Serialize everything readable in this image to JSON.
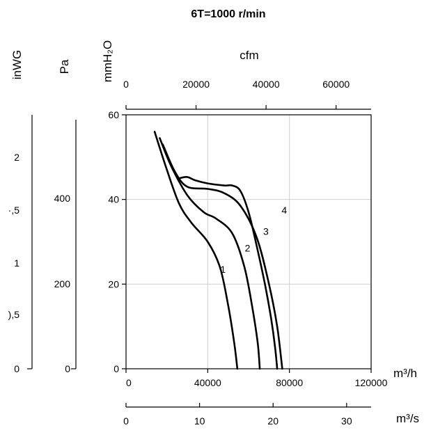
{
  "chart_data": {
    "type": "line",
    "title": "6T=1000 r/min",
    "primary_x": {
      "unit": "m³/h",
      "range": [
        0,
        120000
      ],
      "ticks": [
        0,
        40000,
        80000,
        120000
      ]
    },
    "primary_y": {
      "unit": "mmH₂O",
      "range": [
        0,
        60
      ],
      "ticks": [
        0,
        20,
        40,
        60
      ]
    },
    "secondary_x_top": {
      "unit": "cfm",
      "range": [
        0,
        70000
      ],
      "ticks": [
        0,
        20000,
        40000,
        60000
      ]
    },
    "secondary_x_bottom": {
      "unit": "m³/s",
      "range": [
        0,
        33.33
      ],
      "ticks": [
        0,
        10,
        20,
        30
      ]
    },
    "secondary_y_pa": {
      "unit": "Pa",
      "ticks": [
        0,
        200,
        400
      ]
    },
    "secondary_y_inwg": {
      "unit": "inWG",
      "ticks": [
        "0",
        "),5",
        "1",
        "·,5",
        "2"
      ]
    },
    "grid": true,
    "series": [
      {
        "name": "1",
        "points": [
          [
            14000,
            56
          ],
          [
            20000,
            47
          ],
          [
            26000,
            39
          ],
          [
            32000,
            34.5
          ],
          [
            40000,
            30
          ],
          [
            46000,
            24
          ],
          [
            50000,
            15
          ],
          [
            53000,
            6
          ],
          [
            54500,
            0
          ]
        ]
      },
      {
        "name": "2",
        "points": [
          [
            16500,
            54.5
          ],
          [
            22000,
            48
          ],
          [
            30000,
            41
          ],
          [
            38000,
            37
          ],
          [
            44000,
            35.5
          ],
          [
            52000,
            32
          ],
          [
            58000,
            24
          ],
          [
            62000,
            14
          ],
          [
            64500,
            6
          ],
          [
            65500,
            0
          ]
        ]
      },
      {
        "name": "3",
        "points": [
          [
            18000,
            53
          ],
          [
            24000,
            46.5
          ],
          [
            30000,
            43
          ],
          [
            40000,
            42.5
          ],
          [
            48000,
            41.5
          ],
          [
            56000,
            38.5
          ],
          [
            64000,
            31
          ],
          [
            70000,
            20
          ],
          [
            74000,
            10
          ],
          [
            76500,
            0
          ]
        ]
      },
      {
        "name": "4",
        "points": [
          [
            26000,
            45
          ],
          [
            30000,
            45.3
          ],
          [
            34000,
            44.5
          ],
          [
            40000,
            43.8
          ],
          [
            48000,
            43.3
          ],
          [
            52000,
            43.3
          ],
          [
            56000,
            42
          ],
          [
            60000,
            37
          ],
          [
            64000,
            29
          ],
          [
            68000,
            20
          ],
          [
            71000,
            12
          ],
          [
            73000,
            5
          ],
          [
            74000,
            0
          ]
        ]
      }
    ],
    "curve_labels": [
      {
        "text": "1",
        "x": 47500,
        "y": 23.5
      },
      {
        "text": "2",
        "x": 59500,
        "y": 28.5
      },
      {
        "text": "3",
        "x": 68500,
        "y": 32.5
      },
      {
        "text": "4",
        "x": 77500,
        "y": 37.5
      }
    ]
  }
}
